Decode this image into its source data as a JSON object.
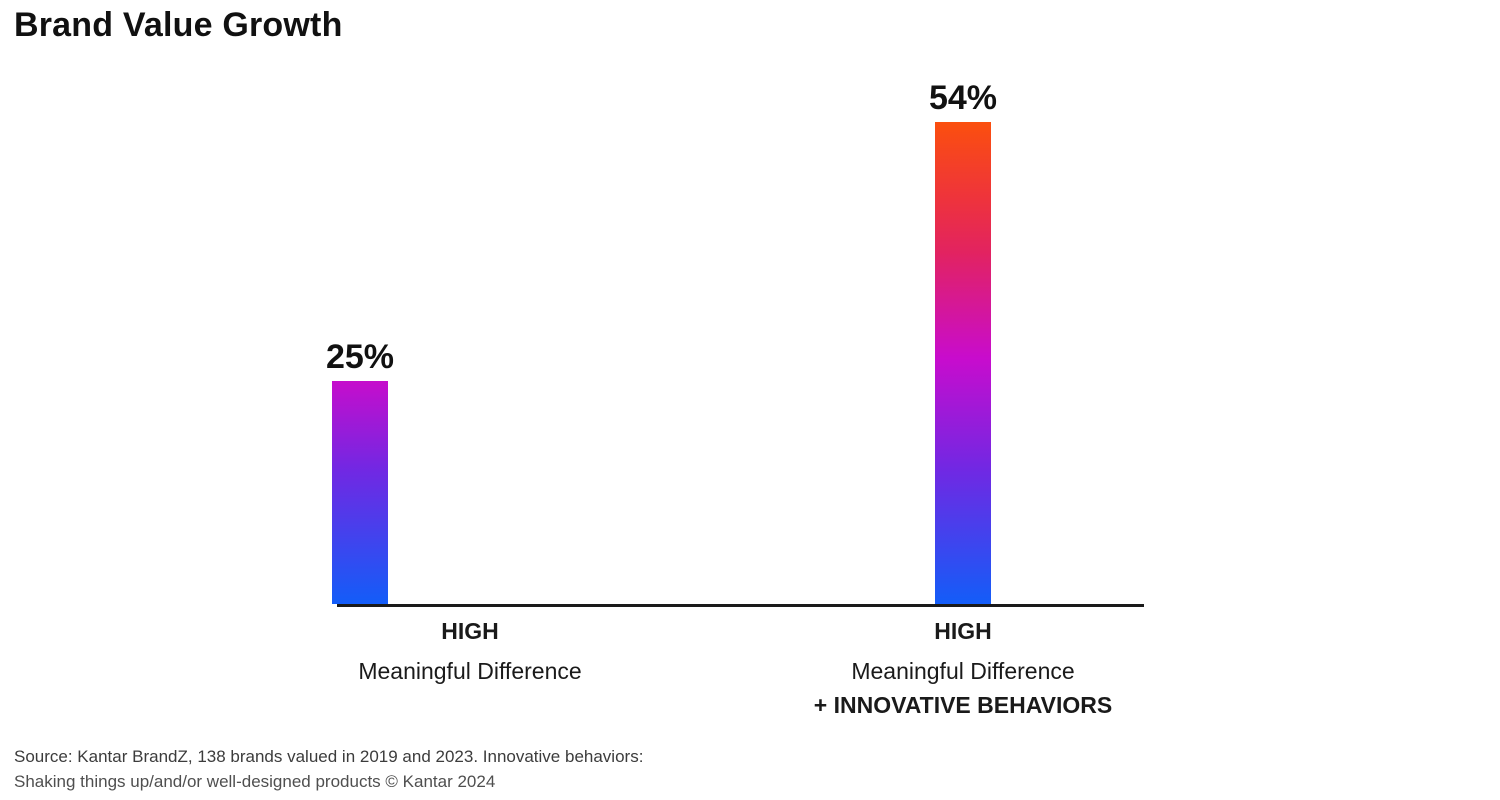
{
  "title": "Brand Value Growth",
  "chart_data": {
    "type": "bar",
    "title": "Brand Value Growth",
    "unit": "%",
    "ylim": [
      0,
      60
    ],
    "grid": false,
    "legend": "none",
    "axis": {
      "baseline_only": true,
      "baseline_color": "#1a1a1a"
    },
    "categories": [
      "HIGH Meaningful Difference",
      "HIGH Meaningful Difference + INNOVATIVE BEHAVIORS"
    ],
    "values": [
      25,
      54
    ],
    "series": [
      {
        "name": "high-meaningful-difference",
        "value": 25,
        "value_label": "25%",
        "x_label_lines": [
          {
            "text": "HIGH",
            "bold": true,
            "first": true
          },
          {
            "text": "Meaningful Difference",
            "bold": false
          }
        ],
        "gradient": [
          {
            "color": "#c60dcc",
            "pos": "0%"
          },
          {
            "color": "#7128e3",
            "pos": "40%"
          },
          {
            "color": "#135df8",
            "pos": "100%"
          }
        ]
      },
      {
        "name": "high-meaningful-difference-plus-innovative-behaviors",
        "value": 54,
        "value_label": "54%",
        "x_label_lines": [
          {
            "text": "HIGH",
            "bold": true,
            "first": true
          },
          {
            "text": "Meaningful Difference",
            "bold": false
          },
          {
            "text": "+ INNOVATIVE BEHAVIORS",
            "bold": true
          }
        ],
        "gradient": [
          {
            "color": "#fb4f0e",
            "pos": "0%"
          },
          {
            "color": "#ee333c",
            "pos": "16%"
          },
          {
            "color": "#e22360",
            "pos": "27%"
          },
          {
            "color": "#c80ccd",
            "pos": "49%"
          },
          {
            "color": "#7128e3",
            "pos": "72%"
          },
          {
            "color": "#135df8",
            "pos": "100%"
          }
        ]
      }
    ]
  },
  "source": {
    "line1": "Source: Kantar BrandZ, 138 brands valued in 2019 and 2023. Innovative behaviors:",
    "line2": "Shaking things up/and/or well-designed products © Kantar 2024"
  },
  "colors": {
    "background": "#ffffff",
    "text": "#111111",
    "axis": "#1a1a1a",
    "gradient_top_54": "#fb4f0e",
    "gradient_top_25": "#c60dcc",
    "gradient_bottom": "#135df8",
    "source_text": "#3c3c3c"
  }
}
